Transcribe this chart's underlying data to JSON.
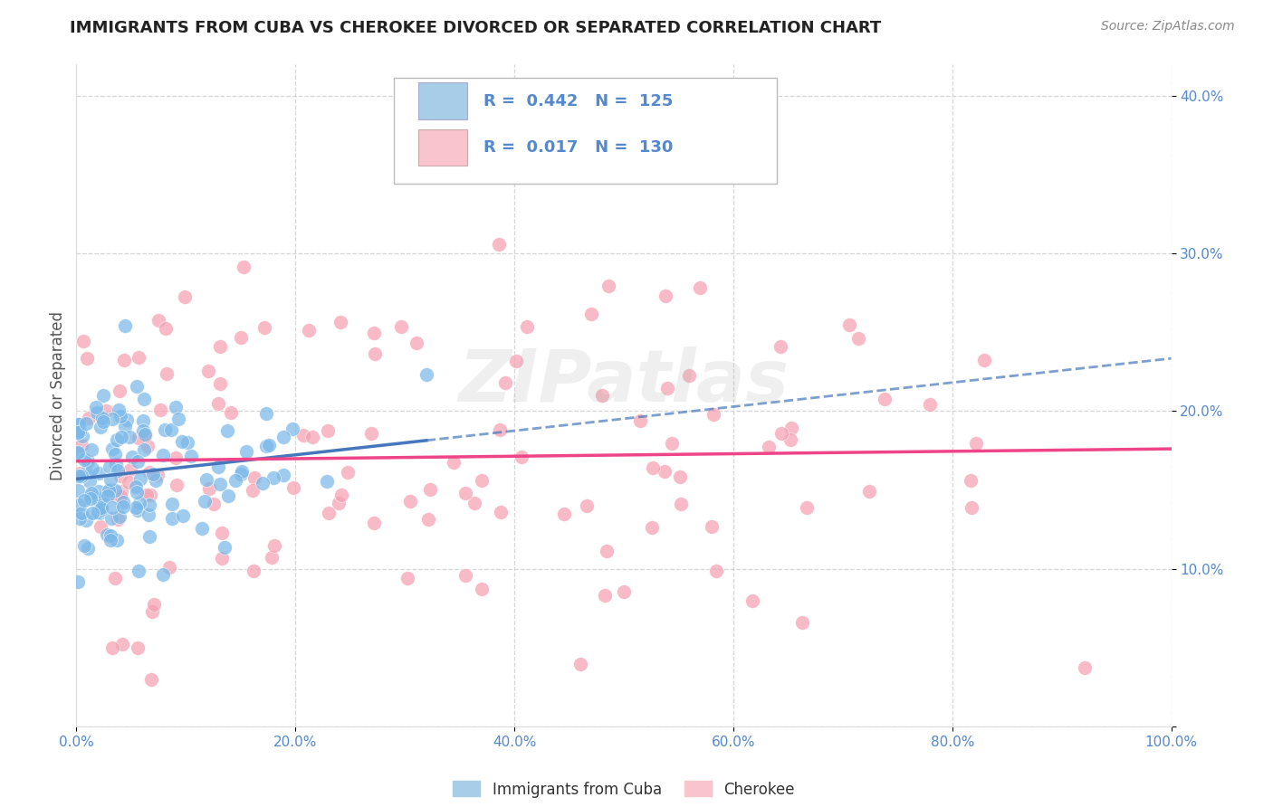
{
  "title": "IMMIGRANTS FROM CUBA VS CHEROKEE DIVORCED OR SEPARATED CORRELATION CHART",
  "source": "Source: ZipAtlas.com",
  "ylabel": "Divorced or Separated",
  "legend_label_1": "Immigrants from Cuba",
  "legend_label_2": "Cherokee",
  "R1": 0.442,
  "N1": 125,
  "R2": 0.017,
  "N2": 130,
  "color1": "#7ab8e8",
  "color2": "#f4a0b0",
  "color1_fill": "#a8cde8",
  "color2_fill": "#f9c4cc",
  "line_color1": "#4477bb",
  "line_color2": "#ee4488",
  "xlim": [
    0,
    1.0
  ],
  "ylim": [
    0,
    0.42
  ],
  "x_ticks": [
    0.0,
    0.2,
    0.4,
    0.6,
    0.8,
    1.0
  ],
  "x_tick_labels": [
    "0.0%",
    "20.0%",
    "40.0%",
    "60.0%",
    "80.0%",
    "100.0%"
  ],
  "y_ticks": [
    0.0,
    0.1,
    0.2,
    0.3,
    0.4
  ],
  "y_tick_labels": [
    "",
    "10.0%",
    "20.0%",
    "30.0%",
    "40.0%"
  ],
  "watermark": "ZIPatlas",
  "background_color": "#ffffff",
  "grid_color": "#cccccc",
  "tick_color": "#5588cc",
  "seed1": 12,
  "seed2": 77
}
